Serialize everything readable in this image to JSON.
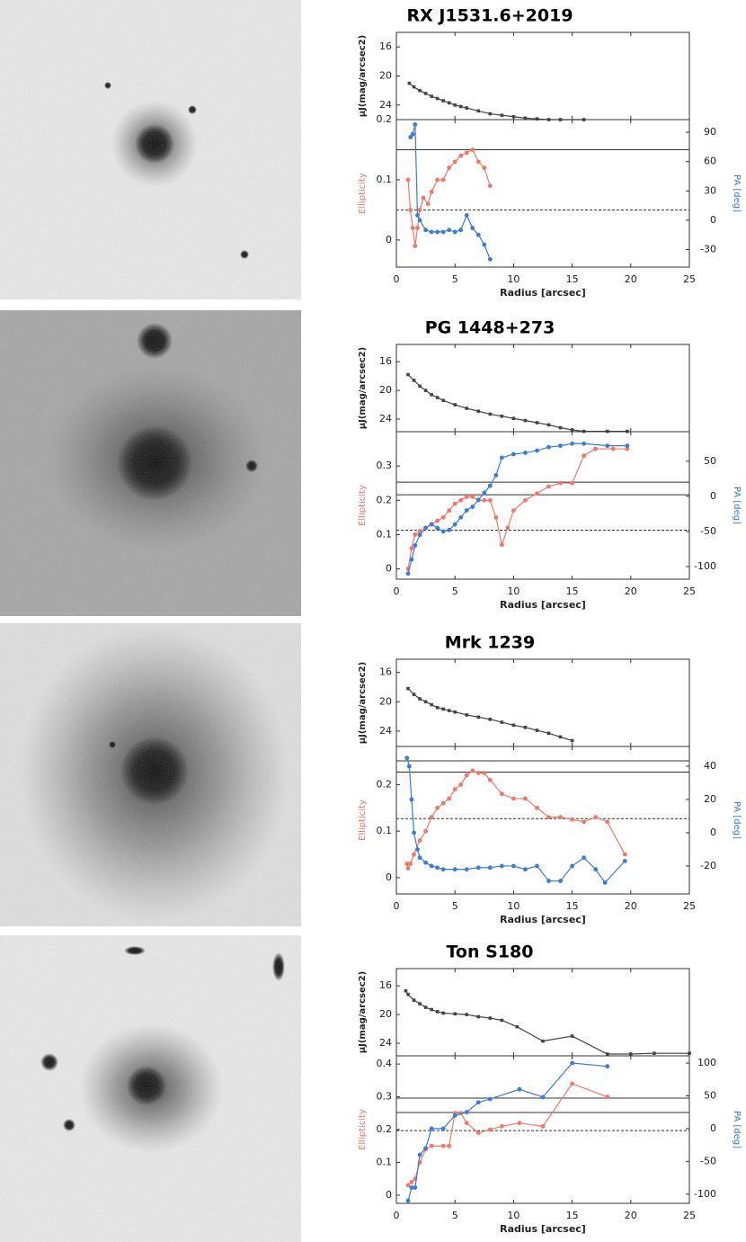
{
  "chart_data": [
    {
      "type": "line",
      "title": "RX J1531.6+2019",
      "y_label": "μJ(mag/arcsec2)",
      "xlim": [
        0,
        25
      ],
      "xticks": [
        0,
        5,
        10,
        15,
        20,
        25
      ],
      "ylim": [
        26,
        14
      ],
      "yticks": [
        16,
        20,
        24
      ],
      "series": [
        {
          "color": "#444444",
          "x": [
            1.1,
            1.5,
            2,
            2.5,
            3,
            3.5,
            4,
            4.5,
            5,
            5.5,
            6,
            7,
            8,
            9,
            10,
            11,
            12,
            13,
            14,
            16
          ],
          "values": [
            21,
            21.5,
            22,
            22.4,
            22.8,
            23.1,
            23.4,
            23.7,
            24,
            24.2,
            24.4,
            24.8,
            25.2,
            25.4,
            25.6,
            25.8,
            25.9,
            26,
            26,
            26
          ]
        }
      ]
    },
    {
      "type": "line",
      "x_label": "Radius [arcsec]",
      "y_label": "Ellipticity",
      "y2_label": "PA [deg]",
      "xlim": [
        0,
        25
      ],
      "xticks": [
        0,
        5,
        10,
        15,
        20,
        25
      ],
      "ylim": [
        -0.045,
        0.2
      ],
      "yticks": [
        0,
        0.1,
        0.2
      ],
      "y2lim": [
        -48,
        103
      ],
      "y2ticks": [
        -30,
        0,
        30,
        60,
        90
      ],
      "reference_lines": [
        {
          "value": 0.15,
          "style": "solid"
        },
        {
          "value": 0.05,
          "style": "dashed"
        }
      ],
      "series": [
        {
          "color": "#f07868",
          "x": [
            1.0,
            1.2,
            1.4,
            1.6,
            1.8,
            2,
            2.3,
            2.7,
            3,
            3.5,
            4,
            4.5,
            5,
            5.5,
            6,
            6.5,
            7,
            7.5,
            8
          ],
          "values": [
            0.1,
            0.05,
            0.02,
            -0.01,
            0.02,
            0.05,
            0.07,
            0.06,
            0.08,
            0.1,
            0.1,
            0.12,
            0.13,
            0.14,
            0.145,
            0.15,
            0.13,
            0.12,
            0.09
          ]
        },
        {
          "color": "#3a7bdc",
          "axis": "y2",
          "x": [
            1.2,
            1.4,
            1.6,
            1.8,
            2,
            2.5,
            3,
            3.5,
            4,
            4.5,
            5,
            5.5,
            6,
            6.5,
            7,
            7.5,
            8
          ],
          "values": [
            85,
            88,
            98,
            5,
            0,
            -10,
            -12,
            -12,
            -12,
            -10,
            -12,
            -10,
            5,
            -8,
            -15,
            -25,
            -40
          ]
        }
      ]
    },
    {
      "type": "line",
      "title": "PG 1448+273",
      "y_label": "μJ(mag/arcsec2)",
      "xlim": [
        0,
        25
      ],
      "xticks": [
        0,
        5,
        10,
        15,
        20,
        25
      ],
      "ylim": [
        25.75,
        13.6
      ],
      "yticks": [
        16,
        20,
        24
      ],
      "series": [
        {
          "color": "#444444",
          "x": [
            1,
            1.5,
            2,
            2.5,
            3,
            3.5,
            4,
            5,
            6,
            7,
            8,
            9,
            10,
            11,
            12,
            13,
            14,
            15,
            16,
            18,
            19.7
          ],
          "values": [
            17.8,
            18.6,
            19.4,
            20,
            20.6,
            21,
            21.4,
            22,
            22.5,
            22.9,
            23.3,
            23.6,
            23.9,
            24.2,
            24.5,
            24.8,
            25.2,
            25.5,
            25.7,
            25.7,
            25.7
          ]
        }
      ]
    },
    {
      "type": "line",
      "x_label": "Radius [arcsec]",
      "y_label": "Ellipticity",
      "y2_label": "PA [deg]",
      "xlim": [
        0,
        25
      ],
      "xticks": [
        0,
        5,
        10,
        15,
        20,
        25
      ],
      "ylim": [
        -0.03,
        0.4
      ],
      "yticks": [
        0,
        0.1,
        0.2,
        0.3
      ],
      "y2lim": [
        -118,
        92
      ],
      "y2ticks": [
        -100,
        -50,
        0,
        50
      ],
      "reference_lines": [
        {
          "value": 0.253,
          "style": "solid"
        },
        {
          "value": 0.216,
          "style": "solid"
        },
        {
          "value": 0.113,
          "style": "dashed"
        }
      ],
      "series": [
        {
          "color": "#f07868",
          "x": [
            1,
            1.3,
            1.6,
            2,
            2.5,
            3,
            3.5,
            4,
            4.5,
            5,
            5.5,
            6,
            6.5,
            7,
            7.5,
            8,
            8.5,
            9,
            9.5,
            10,
            11,
            12,
            13,
            14,
            15,
            16,
            17,
            18.5,
            19.7
          ],
          "values": [
            0,
            0.06,
            0.1,
            0.11,
            0.12,
            0.13,
            0.14,
            0.15,
            0.17,
            0.19,
            0.2,
            0.21,
            0.21,
            0.2,
            0.2,
            0.2,
            0.15,
            0.07,
            0.12,
            0.17,
            0.2,
            0.22,
            0.24,
            0.25,
            0.25,
            0.33,
            0.35,
            0.35,
            0.35
          ]
        },
        {
          "color": "#3a7bdc",
          "axis": "y2",
          "x": [
            1,
            1.3,
            1.6,
            2,
            2.5,
            3,
            3.5,
            4,
            4.5,
            5,
            5.5,
            6,
            6.5,
            7,
            7.5,
            8,
            8.5,
            9,
            10,
            11,
            12,
            13,
            14,
            15,
            16,
            18,
            19.7
          ],
          "values": [
            -110,
            -90,
            -70,
            -55,
            -45,
            -40,
            -45,
            -50,
            -48,
            -40,
            -30,
            -20,
            -15,
            -5,
            5,
            15,
            30,
            55,
            60,
            62,
            65,
            70,
            72,
            75,
            75,
            72,
            72
          ]
        }
      ]
    },
    {
      "type": "line",
      "title": "Mrk 1239",
      "y_label": "μJ(mag/arcsec2)",
      "xlim": [
        0,
        25
      ],
      "xticks": [
        0,
        5,
        10,
        15,
        20,
        25
      ],
      "ylim": [
        26.1,
        14.2
      ],
      "yticks": [
        16,
        20,
        24
      ],
      "series": [
        {
          "color": "#444444",
          "x": [
            1,
            1.5,
            2,
            2.5,
            3,
            3.5,
            4,
            4.5,
            5,
            6,
            7,
            8,
            9,
            10,
            11,
            12,
            13,
            14,
            15
          ],
          "values": [
            18.2,
            19,
            19.6,
            20,
            20.4,
            20.8,
            21,
            21.2,
            21.4,
            21.8,
            22.1,
            22.4,
            22.8,
            23.2,
            23.5,
            23.9,
            24.3,
            24.8,
            25.3
          ]
        }
      ]
    },
    {
      "type": "line",
      "x_label": "Radius [arcsec]",
      "y_label": "Ellipticity",
      "y2_label": "PA [deg]",
      "xlim": [
        0,
        25
      ],
      "xticks": [
        0,
        5,
        10,
        15,
        20,
        25
      ],
      "ylim": [
        -0.035,
        0.282
      ],
      "yticks": [
        0,
        0.1,
        0.2
      ],
      "y2lim": [
        -36.8,
        51.9
      ],
      "y2ticks": [
        -20,
        0,
        20,
        40
      ],
      "reference_lines": [
        {
          "value": 0.251,
          "style": "solid"
        },
        {
          "value": 0.227,
          "style": "solid"
        },
        {
          "value": 0.127,
          "style": "dashed"
        }
      ],
      "series": [
        {
          "color": "#f07868",
          "x": [
            0.9,
            1,
            1.2,
            1.5,
            2,
            2.5,
            3,
            3.5,
            4,
            4.5,
            5,
            5.5,
            6,
            6.5,
            7,
            7.5,
            8,
            9,
            10,
            11,
            12,
            13,
            14,
            15,
            16,
            17,
            18,
            19.5
          ],
          "values": [
            0.03,
            0.02,
            0.03,
            0.05,
            0.08,
            0.1,
            0.13,
            0.15,
            0.16,
            0.17,
            0.19,
            0.2,
            0.22,
            0.23,
            0.225,
            0.225,
            0.21,
            0.18,
            0.17,
            0.17,
            0.15,
            0.13,
            0.13,
            0.125,
            0.12,
            0.13,
            0.12,
            0.05
          ]
        },
        {
          "color": "#3a7bdc",
          "axis": "y2",
          "x": [
            0.9,
            1.1,
            1.3,
            1.5,
            1.8,
            2,
            2.5,
            3,
            3.5,
            4,
            5,
            6,
            7,
            8,
            9,
            10,
            11,
            12,
            13,
            14,
            15,
            16,
            17,
            17.8,
            19.5
          ],
          "values": [
            45,
            40,
            20,
            0,
            -10,
            -15,
            -18,
            -20,
            -21,
            -22,
            -22,
            -22,
            -21,
            -21,
            -20,
            -20,
            -22,
            -20,
            -29,
            -29,
            -20,
            -15,
            -22,
            -30,
            -17
          ]
        }
      ]
    },
    {
      "type": "line",
      "title": "Ton S180",
      "y_label": "μJ(mag/arcsec2)",
      "xlim": [
        0,
        25
      ],
      "xticks": [
        0,
        5,
        10,
        15,
        20,
        25
      ],
      "ylim": [
        25.75,
        13.6
      ],
      "yticks": [
        16,
        20,
        24
      ],
      "series": [
        {
          "color": "#444444",
          "x": [
            0.8,
            1,
            1.5,
            2,
            2.5,
            3,
            3.5,
            4,
            5,
            6,
            7,
            8,
            9,
            10.3,
            12.5,
            15,
            18,
            20,
            22,
            25
          ],
          "values": [
            16.7,
            17.2,
            18,
            18.5,
            19,
            19.3,
            19.6,
            19.8,
            19.9,
            20,
            20.3,
            20.5,
            20.8,
            21.7,
            23.7,
            23,
            25.5,
            25.5,
            25.4,
            25.4
          ]
        }
      ]
    },
    {
      "type": "line",
      "x_label": "Radius [arcsec]",
      "y_label": "Ellipticity",
      "y2_label": "PA [deg]",
      "xlim": [
        0,
        25
      ],
      "xticks": [
        0,
        5,
        10,
        15,
        20,
        25
      ],
      "ylim": [
        -0.025,
        0.425
      ],
      "yticks": [
        0,
        0.1,
        0.2,
        0.3,
        0.4
      ],
      "y2lim": [
        -114,
        111
      ],
      "y2ticks": [
        -100,
        -50,
        0,
        50,
        100
      ],
      "reference_lines": [
        {
          "value": 0.296,
          "style": "solid"
        },
        {
          "value": 0.252,
          "style": "solid"
        },
        {
          "value": 0.197,
          "style": "dashed"
        }
      ],
      "series": [
        {
          "color": "#f07868",
          "x": [
            1,
            1.3,
            1.6,
            2,
            2.5,
            3,
            4,
            4.5,
            5,
            5.5,
            6,
            7,
            8,
            9,
            10.5,
            12.5,
            15,
            18
          ],
          "values": [
            0.03,
            0.04,
            0.05,
            0.1,
            0.14,
            0.15,
            0.15,
            0.15,
            0.25,
            0.25,
            0.22,
            0.19,
            0.2,
            0.21,
            0.22,
            0.21,
            0.34,
            0.3
          ]
        },
        {
          "color": "#3a7bdc",
          "axis": "y2",
          "x": [
            1,
            1.3,
            1.6,
            2,
            2.5,
            3,
            4,
            5,
            6,
            7,
            8,
            10.5,
            12.5,
            15,
            18
          ],
          "values": [
            -110,
            -90,
            -90,
            -40,
            -30,
            0,
            0,
            20,
            25,
            40,
            45,
            60,
            48,
            100,
            95
          ]
        }
      ]
    }
  ]
}
